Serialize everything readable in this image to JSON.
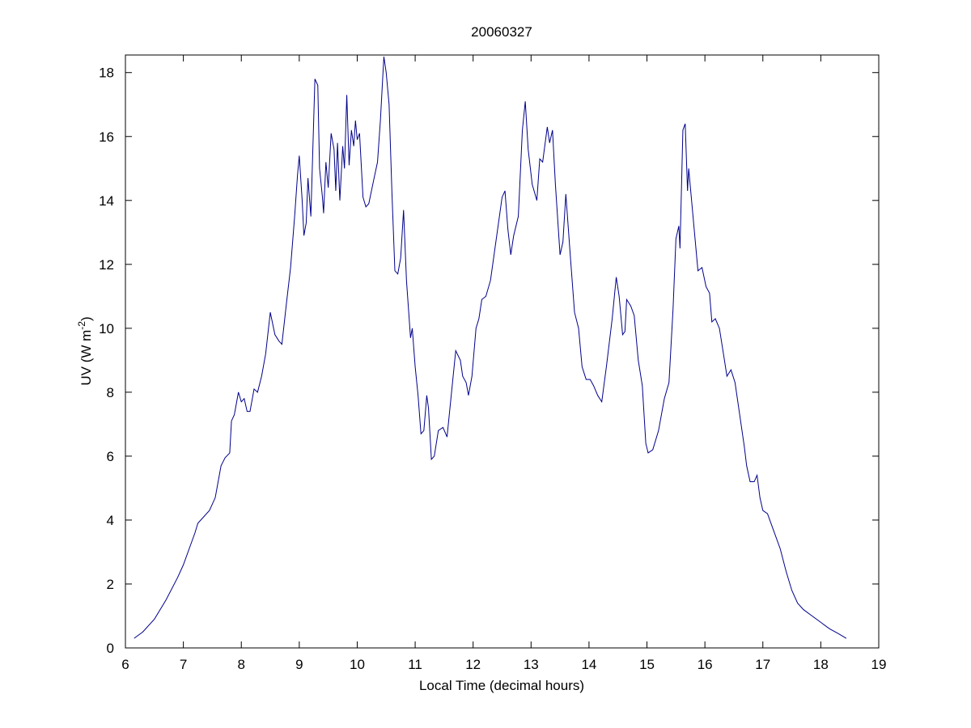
{
  "chart_data": {
    "type": "line",
    "title": "20060327",
    "x_label": "Local Time (decimal hours)",
    "y_label": [
      "UV (W m",
      "-2",
      ")"
    ],
    "color": "#00008b",
    "grid": false,
    "xlim": [
      6,
      19
    ],
    "xticks": [
      6,
      7,
      8,
      9,
      10,
      11,
      12,
      13,
      14,
      15,
      16,
      17,
      18,
      19
    ],
    "ylim": [
      0,
      18.55
    ],
    "yticks": [
      0,
      2,
      4,
      6,
      8,
      10,
      12,
      14,
      16,
      18
    ],
    "x": [
      6.15,
      6.3,
      6.5,
      6.7,
      6.9,
      7.0,
      7.1,
      7.2,
      7.25,
      7.35,
      7.45,
      7.55,
      7.6,
      7.65,
      7.72,
      7.8,
      7.83,
      7.88,
      7.95,
      8.0,
      8.05,
      8.1,
      8.15,
      8.22,
      8.28,
      8.35,
      8.42,
      8.5,
      8.58,
      8.65,
      8.7,
      8.78,
      8.85,
      8.92,
      8.97,
      9.0,
      9.05,
      9.08,
      9.12,
      9.15,
      9.2,
      9.27,
      9.32,
      9.35,
      9.4,
      9.42,
      9.46,
      9.5,
      9.55,
      9.6,
      9.63,
      9.66,
      9.7,
      9.75,
      9.78,
      9.82,
      9.86,
      9.9,
      9.94,
      9.97,
      10.0,
      10.04,
      10.1,
      10.15,
      10.2,
      10.28,
      10.35,
      10.4,
      10.46,
      10.5,
      10.55,
      10.6,
      10.65,
      10.7,
      10.75,
      10.8,
      10.85,
      10.92,
      10.95,
      11.0,
      11.05,
      11.1,
      11.15,
      11.2,
      11.23,
      11.28,
      11.33,
      11.4,
      11.48,
      11.55,
      11.6,
      11.7,
      11.78,
      11.82,
      11.88,
      11.92,
      11.98,
      12.05,
      12.1,
      12.15,
      12.22,
      12.3,
      12.4,
      12.5,
      12.55,
      12.6,
      12.65,
      12.7,
      12.78,
      12.85,
      12.9,
      12.95,
      13.02,
      13.1,
      13.15,
      13.2,
      13.28,
      13.32,
      13.37,
      13.42,
      13.5,
      13.55,
      13.6,
      13.68,
      13.75,
      13.82,
      13.88,
      13.95,
      14.02,
      14.08,
      14.15,
      14.22,
      14.3,
      14.4,
      14.47,
      14.52,
      14.58,
      14.62,
      14.65,
      14.72,
      14.78,
      14.85,
      14.92,
      14.98,
      15.02,
      15.1,
      15.2,
      15.3,
      15.38,
      15.45,
      15.5,
      15.55,
      15.57,
      15.62,
      15.66,
      15.7,
      15.72,
      15.76,
      15.82,
      15.88,
      15.95,
      16.02,
      16.08,
      16.12,
      16.18,
      16.25,
      16.32,
      16.38,
      16.45,
      16.52,
      16.6,
      16.68,
      16.72,
      16.78,
      16.85,
      16.9,
      16.95,
      17.0,
      17.08,
      17.18,
      17.3,
      17.4,
      17.5,
      17.6,
      17.7,
      17.85,
      18.0,
      18.15,
      18.3,
      18.44
    ],
    "values": [
      0.3,
      0.5,
      0.9,
      1.5,
      2.2,
      2.6,
      3.1,
      3.6,
      3.9,
      4.1,
      4.3,
      4.7,
      5.2,
      5.7,
      5.95,
      6.1,
      7.1,
      7.3,
      8.0,
      7.7,
      7.8,
      7.4,
      7.4,
      8.1,
      8.0,
      8.5,
      9.2,
      10.5,
      9.8,
      9.6,
      9.5,
      10.8,
      11.9,
      13.5,
      14.8,
      15.4,
      14.0,
      12.9,
      13.3,
      14.7,
      13.5,
      17.8,
      17.6,
      15.0,
      14.1,
      13.6,
      15.2,
      14.4,
      16.1,
      15.6,
      14.3,
      15.8,
      14.0,
      15.7,
      15.0,
      17.3,
      15.1,
      16.2,
      15.7,
      16.5,
      15.9,
      16.1,
      14.1,
      13.8,
      13.9,
      14.6,
      15.2,
      16.5,
      18.5,
      18.0,
      17.0,
      14.2,
      11.8,
      11.7,
      12.2,
      13.7,
      11.5,
      9.7,
      10.0,
      8.8,
      7.9,
      6.7,
      6.8,
      7.9,
      7.5,
      5.9,
      6.0,
      6.8,
      6.9,
      6.6,
      7.5,
      9.3,
      9.0,
      8.5,
      8.3,
      7.9,
      8.5,
      10.0,
      10.3,
      10.9,
      11.0,
      11.5,
      12.8,
      14.1,
      14.3,
      13.1,
      12.3,
      12.9,
      13.5,
      16.2,
      17.1,
      15.6,
      14.5,
      14.0,
      15.3,
      15.2,
      16.3,
      15.8,
      16.2,
      14.5,
      12.3,
      12.7,
      14.2,
      12.2,
      10.5,
      10.0,
      8.8,
      8.4,
      8.4,
      8.2,
      7.9,
      7.7,
      8.8,
      10.3,
      11.6,
      11.0,
      9.8,
      9.9,
      10.9,
      10.7,
      10.4,
      9.0,
      8.2,
      6.4,
      6.1,
      6.2,
      6.8,
      7.8,
      8.3,
      10.6,
      12.8,
      13.2,
      12.5,
      16.2,
      16.4,
      14.3,
      15.0,
      14.2,
      13.0,
      11.8,
      11.9,
      11.3,
      11.1,
      10.2,
      10.3,
      10.0,
      9.2,
      8.5,
      8.7,
      8.3,
      7.3,
      6.3,
      5.7,
      5.2,
      5.2,
      5.4,
      4.7,
      4.3,
      4.2,
      3.7,
      3.1,
      2.4,
      1.8,
      1.4,
      1.2,
      1.0,
      0.8,
      0.6,
      0.45,
      0.3
    ]
  }
}
